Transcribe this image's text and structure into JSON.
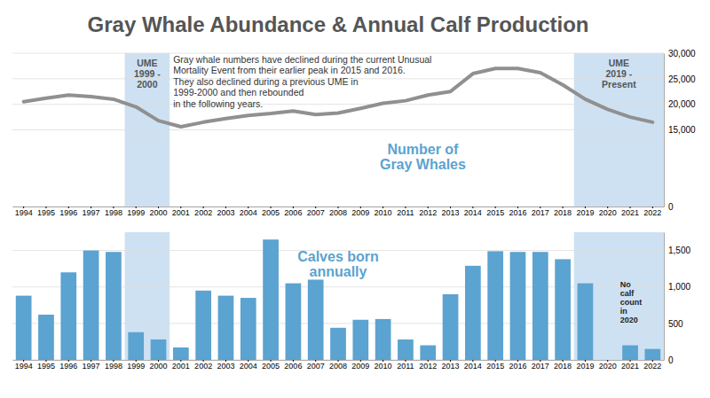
{
  "chart_data": [
    {
      "type": "line",
      "title": "Gray Whale Abundance & Annual Calf Production",
      "categories": [
        "1994",
        "1995",
        "1996",
        "1997",
        "1998",
        "1999",
        "2000",
        "2001",
        "2002",
        "2003",
        "2004",
        "2005",
        "2006",
        "2007",
        "2008",
        "2009",
        "2010",
        "2011",
        "2012",
        "2013",
        "2014",
        "2015",
        "2016",
        "2017",
        "2018",
        "2019",
        "2020",
        "2021",
        "2022"
      ],
      "values": [
        20500,
        21200,
        21800,
        21500,
        21000,
        19500,
        16800,
        15600,
        16500,
        17200,
        17800,
        18200,
        18700,
        18000,
        18300,
        19200,
        20200,
        20700,
        21800,
        22500,
        26000,
        27000,
        27000,
        26200,
        23800,
        21000,
        19000,
        17500,
        16500
      ],
      "color": "#909090",
      "ylim": [
        0,
        30000
      ],
      "yticks": [
        0,
        {
          "value": 15000,
          "label": "15,000"
        },
        {
          "value": 20000,
          "label": "20,000"
        },
        {
          "value": 25000,
          "label": "25,000"
        },
        {
          "value": 30000,
          "label": "30,000"
        }
      ],
      "grid": true,
      "shaded_ranges": [
        {
          "start": "1999",
          "end": "2000",
          "label": "UME\n1999 -\n2000",
          "color": "#BDD7EE"
        },
        {
          "start": "2019",
          "end": "2022",
          "label": "UME\n2019 -\nPresent",
          "color": "#BDD7EE"
        }
      ],
      "annotations": [
        {
          "text": "Gray whale numbers have declined during the current Unusual\nMortality Event from their earlier peak in 2015 and 2016.\nThey also declined during a previous UME in\n1999-2000 and then rebounded\nin the following years."
        },
        {
          "text": "Number of\nGray Whales",
          "color": "#5BA3D0"
        }
      ]
    },
    {
      "type": "bar",
      "categories": [
        "1994",
        "1995",
        "1996",
        "1997",
        "1998",
        "1999",
        "2000",
        "2001",
        "2002",
        "2003",
        "2004",
        "2005",
        "2006",
        "2007",
        "2008",
        "2009",
        "2010",
        "2011",
        "2012",
        "2013",
        "2014",
        "2015",
        "2016",
        "2017",
        "2018",
        "2019",
        "2020",
        "2021",
        "2022"
      ],
      "values": [
        880,
        620,
        1200,
        1500,
        1480,
        380,
        280,
        170,
        950,
        880,
        850,
        1650,
        1050,
        1100,
        440,
        550,
        560,
        280,
        200,
        900,
        1290,
        1490,
        1480,
        1480,
        1380,
        1050,
        0,
        200,
        150
      ],
      "color": "#5BA3D0",
      "ylim": [
        0,
        1750
      ],
      "yticks": [
        0,
        500,
        {
          "value": 1000,
          "label": "1,000"
        },
        {
          "value": 1500,
          "label": "1,500"
        }
      ],
      "grid": true,
      "shaded_ranges": [
        {
          "start": "1999",
          "end": "2000",
          "color": "#BDD7EE"
        },
        {
          "start": "2019",
          "end": "2022",
          "color": "#BDD7EE"
        }
      ],
      "annotations": [
        {
          "text": "Calves born\nannually",
          "color": "#5BA3D0"
        },
        {
          "text": "No\ncalf\ncount\nin\n2020",
          "x": "2020"
        }
      ]
    }
  ]
}
